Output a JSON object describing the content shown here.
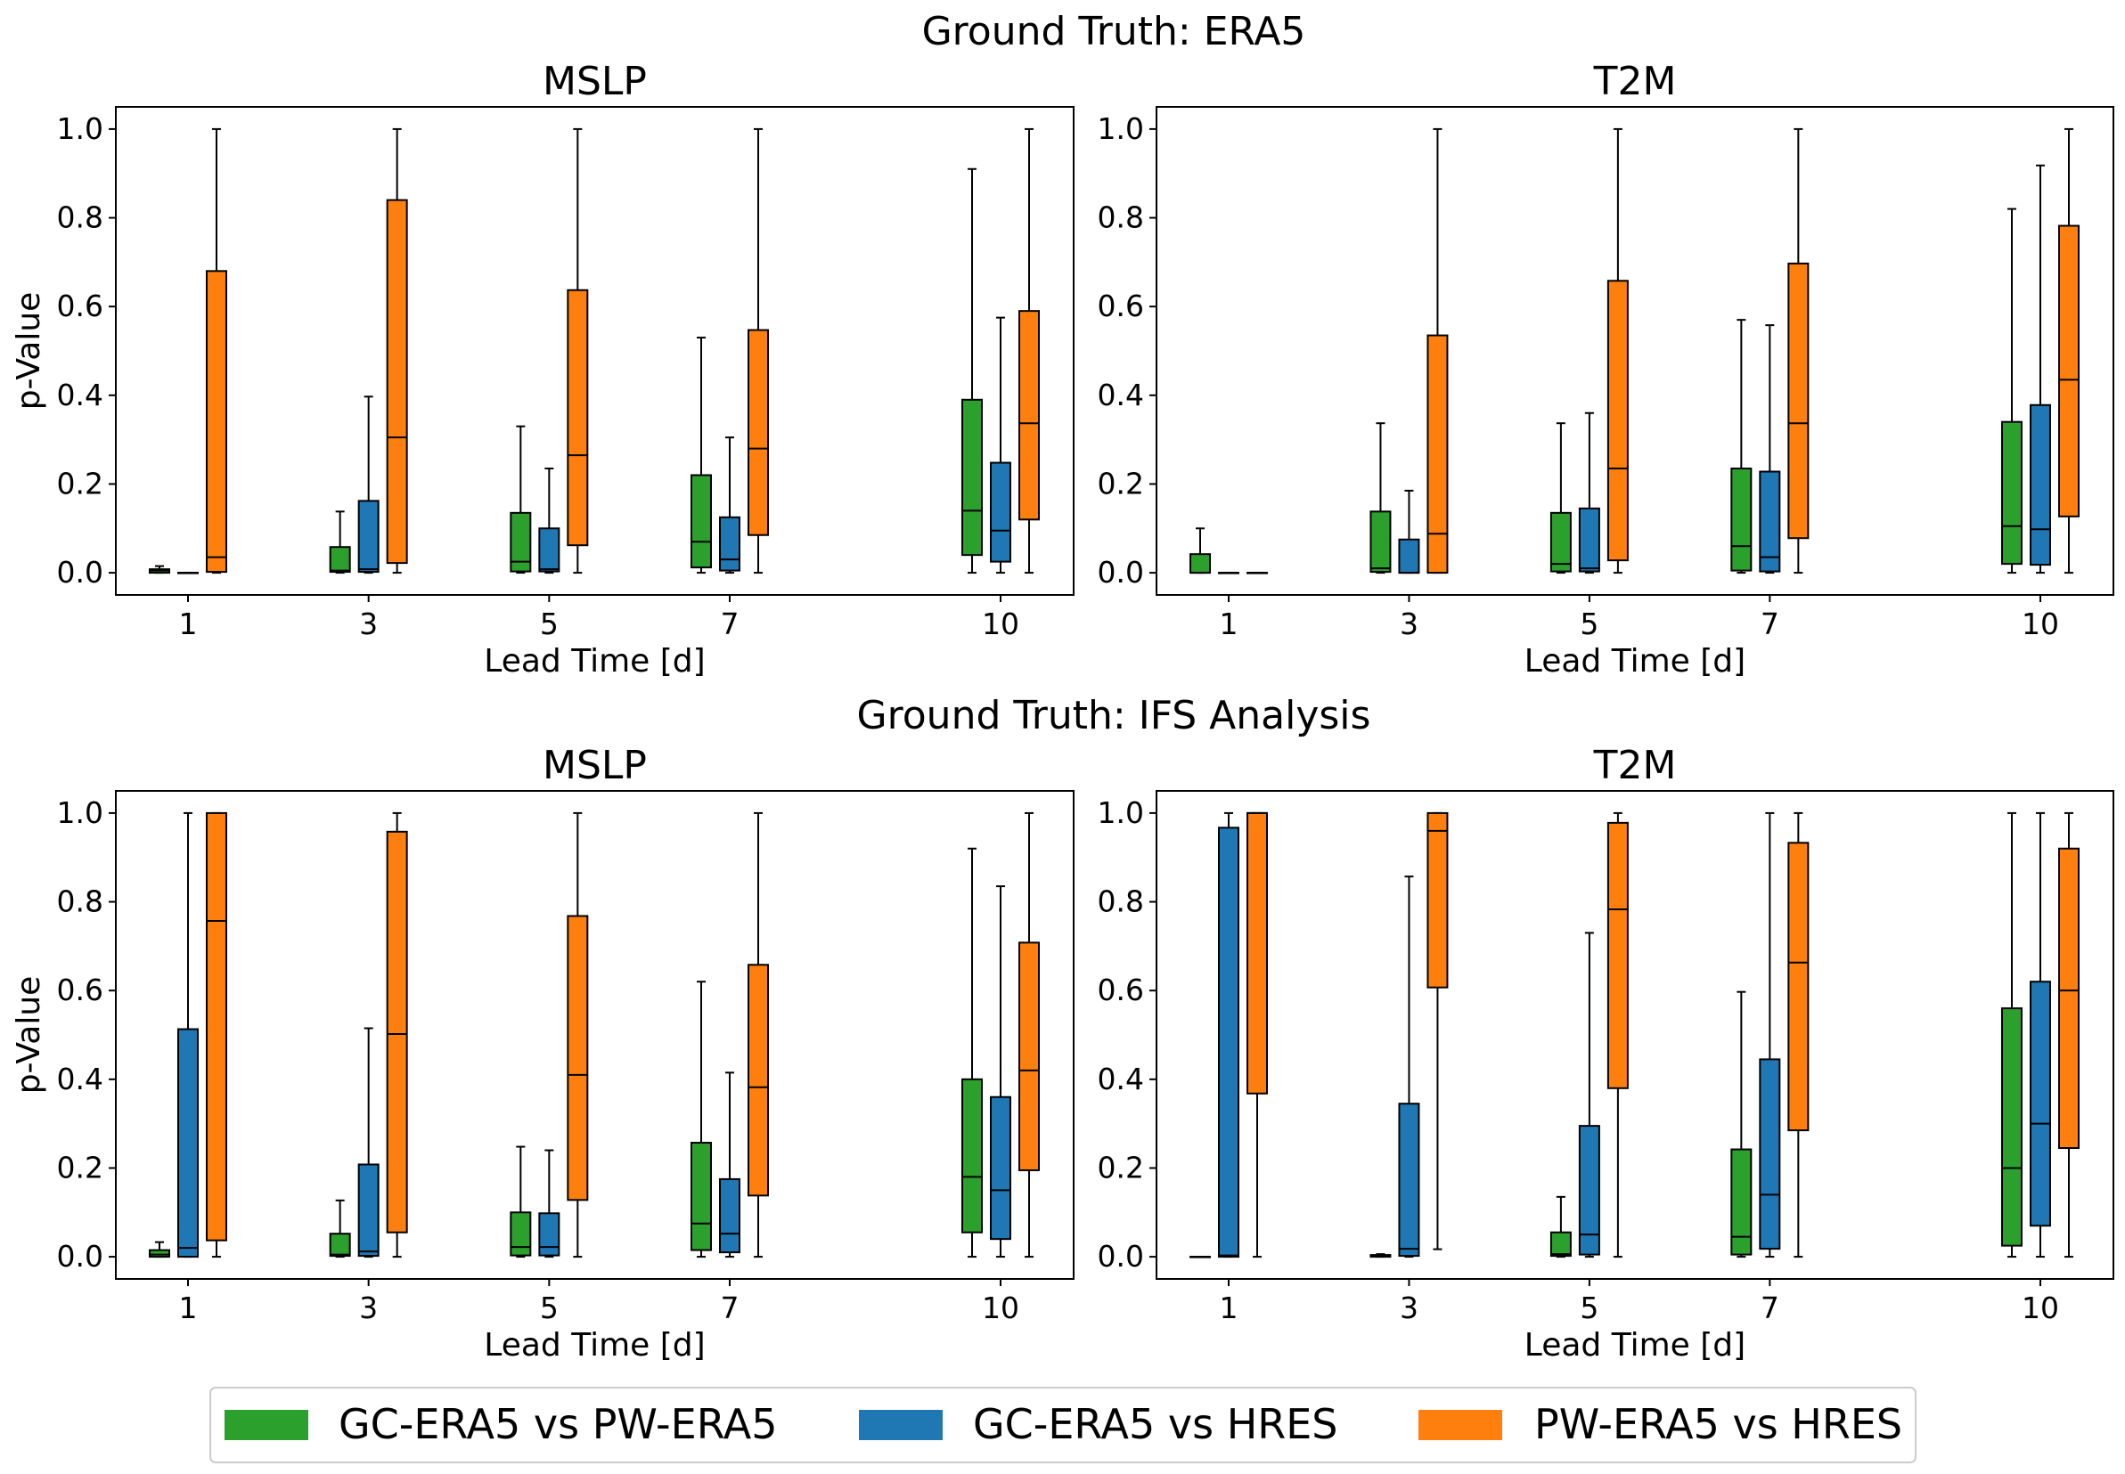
{
  "series_colors": {
    "gc_pw": "#2ca02c",
    "gc_hres": "#1f77b4",
    "pw_hres": "#ff7f0e"
  },
  "rows": [
    {
      "suptitle": "Ground Truth: ERA5"
    },
    {
      "suptitle": "Ground Truth: IFS Analysis"
    }
  ],
  "legend": {
    "items": [
      {
        "label": "GC-ERA5 vs PW-ERA5",
        "color": "#2ca02c"
      },
      {
        "label": "GC-ERA5 vs HRES",
        "color": "#1f77b4"
      },
      {
        "label": "PW-ERA5 vs HRES",
        "color": "#ff7f0e"
      }
    ]
  },
  "chart_data": [
    {
      "type": "box",
      "title": "MSLP",
      "xlabel": "Lead Time [d]",
      "ylabel": "p-Value",
      "ylim": [
        -0.05,
        1.05
      ],
      "yticks": [
        "0.0",
        "0.2",
        "0.4",
        "0.6",
        "0.8",
        "1.0"
      ],
      "categories": [
        1,
        3,
        5,
        7,
        10
      ],
      "series": [
        {
          "name": "GC-ERA5 vs PW-ERA5",
          "color": "#2ca02c",
          "boxes": [
            {
              "min": 0.0,
              "q1": 0.0,
              "median": 0.005,
              "q3": 0.008,
              "max": 0.015
            },
            {
              "min": 0.0,
              "q1": 0.002,
              "median": 0.005,
              "q3": 0.058,
              "max": 0.138
            },
            {
              "min": 0.0,
              "q1": 0.003,
              "median": 0.025,
              "q3": 0.135,
              "max": 0.33
            },
            {
              "min": 0.0,
              "q1": 0.012,
              "median": 0.07,
              "q3": 0.22,
              "max": 0.53
            },
            {
              "min": 0.0,
              "q1": 0.04,
              "median": 0.14,
              "q3": 0.39,
              "max": 0.91
            }
          ]
        },
        {
          "name": "GC-ERA5 vs HRES",
          "color": "#1f77b4",
          "boxes": [
            {
              "min": 0.0,
              "q1": 0.0,
              "median": 0.0,
              "q3": 0.0,
              "max": 0.0
            },
            {
              "min": 0.0,
              "q1": 0.002,
              "median": 0.008,
              "q3": 0.162,
              "max": 0.397
            },
            {
              "min": 0.0,
              "q1": 0.003,
              "median": 0.008,
              "q3": 0.1,
              "max": 0.235
            },
            {
              "min": 0.0,
              "q1": 0.005,
              "median": 0.03,
              "q3": 0.125,
              "max": 0.305
            },
            {
              "min": 0.0,
              "q1": 0.025,
              "median": 0.095,
              "q3": 0.248,
              "max": 0.575
            }
          ]
        },
        {
          "name": "PW-ERA5 vs HRES",
          "color": "#ff7f0e",
          "boxes": [
            {
              "min": 0.0,
              "q1": 0.002,
              "median": 0.035,
              "q3": 0.68,
              "max": 1.0
            },
            {
              "min": 0.0,
              "q1": 0.022,
              "median": 0.305,
              "q3": 0.84,
              "max": 1.0
            },
            {
              "min": 0.0,
              "q1": 0.062,
              "median": 0.265,
              "q3": 0.637,
              "max": 1.0
            },
            {
              "min": 0.0,
              "q1": 0.085,
              "median": 0.28,
              "q3": 0.547,
              "max": 1.0
            },
            {
              "min": 0.0,
              "q1": 0.12,
              "median": 0.337,
              "q3": 0.59,
              "max": 1.0
            }
          ]
        }
      ]
    },
    {
      "type": "box",
      "title": "T2M",
      "xlabel": "Lead Time [d]",
      "ylabel": "",
      "ylim": [
        -0.05,
        1.05
      ],
      "yticks": [
        "0.0",
        "0.2",
        "0.4",
        "0.6",
        "0.8",
        "1.0"
      ],
      "categories": [
        1,
        3,
        5,
        7,
        10
      ],
      "series": [
        {
          "name": "GC-ERA5 vs PW-ERA5",
          "color": "#2ca02c",
          "boxes": [
            {
              "min": 0.0,
              "q1": 0.0,
              "median": 0.0,
              "q3": 0.042,
              "max": 0.1
            },
            {
              "min": 0.0,
              "q1": 0.002,
              "median": 0.01,
              "q3": 0.138,
              "max": 0.337
            },
            {
              "min": 0.0,
              "q1": 0.003,
              "median": 0.02,
              "q3": 0.135,
              "max": 0.337
            },
            {
              "min": 0.0,
              "q1": 0.005,
              "median": 0.06,
              "q3": 0.235,
              "max": 0.57
            },
            {
              "min": 0.0,
              "q1": 0.02,
              "median": 0.105,
              "q3": 0.34,
              "max": 0.82
            }
          ]
        },
        {
          "name": "GC-ERA5 vs HRES",
          "color": "#1f77b4",
          "boxes": [
            {
              "min": 0.0,
              "q1": 0.0,
              "median": 0.0,
              "q3": 0.0,
              "max": 0.0
            },
            {
              "min": 0.0,
              "q1": 0.0,
              "median": 0.0,
              "q3": 0.075,
              "max": 0.185
            },
            {
              "min": 0.0,
              "q1": 0.003,
              "median": 0.01,
              "q3": 0.145,
              "max": 0.36
            },
            {
              "min": 0.0,
              "q1": 0.003,
              "median": 0.035,
              "q3": 0.228,
              "max": 0.558
            },
            {
              "min": 0.0,
              "q1": 0.018,
              "median": 0.098,
              "q3": 0.378,
              "max": 0.918
            }
          ]
        },
        {
          "name": "PW-ERA5 vs HRES",
          "color": "#ff7f0e",
          "boxes": [
            {
              "min": 0.0,
              "q1": 0.0,
              "median": 0.0,
              "q3": 0.0,
              "max": 0.0
            },
            {
              "min": 0.0,
              "q1": 0.0,
              "median": 0.088,
              "q3": 0.535,
              "max": 1.0
            },
            {
              "min": 0.0,
              "q1": 0.028,
              "median": 0.235,
              "q3": 0.658,
              "max": 1.0
            },
            {
              "min": 0.0,
              "q1": 0.078,
              "median": 0.337,
              "q3": 0.697,
              "max": 1.0
            },
            {
              "min": 0.0,
              "q1": 0.127,
              "median": 0.435,
              "q3": 0.782,
              "max": 1.0
            }
          ]
        }
      ]
    },
    {
      "type": "box",
      "title": "MSLP",
      "xlabel": "Lead Time [d]",
      "ylabel": "p-Value",
      "ylim": [
        -0.05,
        1.05
      ],
      "yticks": [
        "0.0",
        "0.2",
        "0.4",
        "0.6",
        "0.8",
        "1.0"
      ],
      "categories": [
        1,
        3,
        5,
        7,
        10
      ],
      "series": [
        {
          "name": "GC-ERA5 vs PW-ERA5",
          "color": "#2ca02c",
          "boxes": [
            {
              "min": 0.0,
              "q1": 0.0,
              "median": 0.005,
              "q3": 0.015,
              "max": 0.033
            },
            {
              "min": 0.0,
              "q1": 0.002,
              "median": 0.005,
              "q3": 0.052,
              "max": 0.127
            },
            {
              "min": 0.0,
              "q1": 0.003,
              "median": 0.022,
              "q3": 0.1,
              "max": 0.248
            },
            {
              "min": 0.0,
              "q1": 0.015,
              "median": 0.075,
              "q3": 0.257,
              "max": 0.62
            },
            {
              "min": 0.0,
              "q1": 0.055,
              "median": 0.18,
              "q3": 0.4,
              "max": 0.92
            }
          ]
        },
        {
          "name": "GC-ERA5 vs HRES",
          "color": "#1f77b4",
          "boxes": [
            {
              "min": 0.0,
              "q1": 0.0,
              "median": 0.02,
              "q3": 0.513,
              "max": 1.0
            },
            {
              "min": 0.0,
              "q1": 0.002,
              "median": 0.012,
              "q3": 0.208,
              "max": 0.515
            },
            {
              "min": 0.0,
              "q1": 0.003,
              "median": 0.022,
              "q3": 0.098,
              "max": 0.24
            },
            {
              "min": 0.0,
              "q1": 0.01,
              "median": 0.052,
              "q3": 0.175,
              "max": 0.415
            },
            {
              "min": 0.0,
              "q1": 0.04,
              "median": 0.15,
              "q3": 0.36,
              "max": 0.835
            }
          ]
        },
        {
          "name": "PW-ERA5 vs HRES",
          "color": "#ff7f0e",
          "boxes": [
            {
              "min": 0.0,
              "q1": 0.037,
              "median": 0.757,
              "q3": 1.0,
              "max": 1.0
            },
            {
              "min": 0.0,
              "q1": 0.055,
              "median": 0.502,
              "q3": 0.958,
              "max": 1.0
            },
            {
              "min": 0.0,
              "q1": 0.128,
              "median": 0.41,
              "q3": 0.768,
              "max": 1.0
            },
            {
              "min": 0.0,
              "q1": 0.138,
              "median": 0.382,
              "q3": 0.658,
              "max": 1.0
            },
            {
              "min": 0.0,
              "q1": 0.195,
              "median": 0.42,
              "q3": 0.708,
              "max": 1.0
            }
          ]
        }
      ]
    },
    {
      "type": "box",
      "title": "T2M",
      "xlabel": "Lead Time [d]",
      "ylabel": "",
      "ylim": [
        -0.05,
        1.05
      ],
      "yticks": [
        "0.0",
        "0.2",
        "0.4",
        "0.6",
        "0.8",
        "1.0"
      ],
      "categories": [
        1,
        3,
        5,
        7,
        10
      ],
      "series": [
        {
          "name": "GC-ERA5 vs PW-ERA5",
          "color": "#2ca02c",
          "boxes": [
            {
              "min": 0.0,
              "q1": 0.0,
              "median": 0.0,
              "q3": 0.0,
              "max": 0.0
            },
            {
              "min": 0.0,
              "q1": 0.0,
              "median": 0.002,
              "q3": 0.004,
              "max": 0.006
            },
            {
              "min": 0.0,
              "q1": 0.002,
              "median": 0.006,
              "q3": 0.055,
              "max": 0.135
            },
            {
              "min": 0.0,
              "q1": 0.005,
              "median": 0.045,
              "q3": 0.242,
              "max": 0.597
            },
            {
              "min": 0.0,
              "q1": 0.025,
              "median": 0.2,
              "q3": 0.56,
              "max": 1.0
            }
          ]
        },
        {
          "name": "GC-ERA5 vs HRES",
          "color": "#1f77b4",
          "boxes": [
            {
              "min": 0.0,
              "q1": 0.0,
              "median": 0.003,
              "q3": 0.967,
              "max": 1.0
            },
            {
              "min": 0.0,
              "q1": 0.002,
              "median": 0.018,
              "q3": 0.345,
              "max": 0.857
            },
            {
              "min": 0.0,
              "q1": 0.005,
              "median": 0.05,
              "q3": 0.295,
              "max": 0.73
            },
            {
              "min": 0.0,
              "q1": 0.018,
              "median": 0.14,
              "q3": 0.445,
              "max": 1.0
            },
            {
              "min": 0.0,
              "q1": 0.07,
              "median": 0.3,
              "q3": 0.62,
              "max": 1.0
            }
          ]
        },
        {
          "name": "PW-ERA5 vs HRES",
          "color": "#ff7f0e",
          "boxes": [
            {
              "min": 0.0,
              "q1": 0.368,
              "median": 1.0,
              "q3": 1.0,
              "max": 1.0
            },
            {
              "min": 0.017,
              "q1": 0.607,
              "median": 0.96,
              "q3": 1.0,
              "max": 1.0
            },
            {
              "min": 0.0,
              "q1": 0.38,
              "median": 0.783,
              "q3": 0.978,
              "max": 1.0
            },
            {
              "min": 0.0,
              "q1": 0.285,
              "median": 0.663,
              "q3": 0.933,
              "max": 1.0
            },
            {
              "min": 0.0,
              "q1": 0.245,
              "median": 0.6,
              "q3": 0.92,
              "max": 1.0
            }
          ]
        }
      ]
    }
  ]
}
